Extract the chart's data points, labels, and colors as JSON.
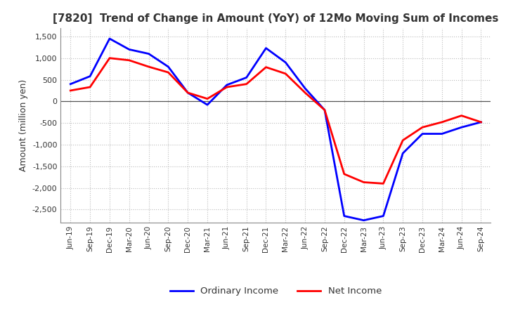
{
  "title": "[7820]  Trend of Change in Amount (YoY) of 12Mo Moving Sum of Incomes",
  "ylabel": "Amount (million yen)",
  "ylim": [
    -2800,
    1700
  ],
  "yticks": [
    -2500,
    -2000,
    -1500,
    -1000,
    -500,
    0,
    500,
    1000,
    1500
  ],
  "background_color": "#ffffff",
  "grid_color": "#bbbbbb",
  "labels": [
    "Jun-19",
    "Sep-19",
    "Dec-19",
    "Mar-20",
    "Jun-20",
    "Sep-20",
    "Dec-20",
    "Mar-21",
    "Jun-21",
    "Sep-21",
    "Dec-21",
    "Mar-22",
    "Jun-22",
    "Sep-22",
    "Dec-22",
    "Mar-23",
    "Jun-23",
    "Sep-23",
    "Dec-23",
    "Mar-24",
    "Jun-24",
    "Sep-24"
  ],
  "ordinary_income": [
    400,
    580,
    1450,
    1200,
    1100,
    800,
    200,
    -80,
    380,
    550,
    1230,
    900,
    300,
    -200,
    -2650,
    -2750,
    -2650,
    -1200,
    -750,
    -750,
    -600,
    -480
  ],
  "net_income": [
    250,
    330,
    1000,
    950,
    800,
    670,
    200,
    60,
    330,
    400,
    790,
    640,
    200,
    -200,
    -1680,
    -1870,
    -1900,
    -900,
    -600,
    -480,
    -330,
    -480
  ],
  "ordinary_color": "#0000ff",
  "net_color": "#ff0000",
  "line_width": 2.0,
  "legend_ordinary": "Ordinary Income",
  "legend_net": "Net Income",
  "title_color": "#333333",
  "title_fontsize": 11
}
